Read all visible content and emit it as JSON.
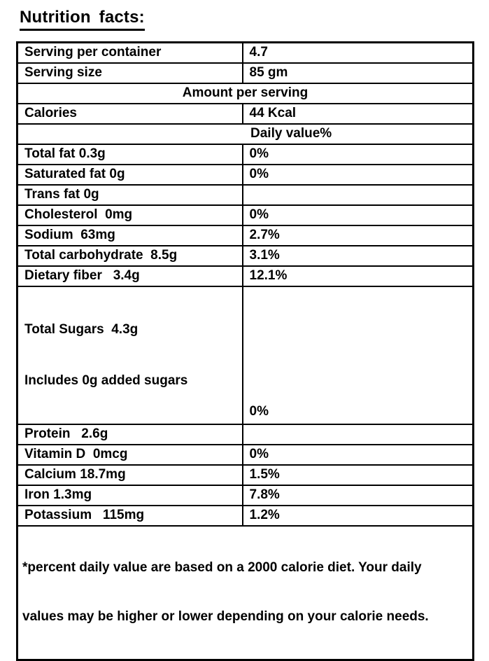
{
  "title": "Nutrition facts:",
  "table": {
    "rows": [
      {
        "label": "Serving per container",
        "value": "4.7"
      },
      {
        "label": "Serving size",
        "value": "85 gm"
      },
      {
        "text": "Amount per serving"
      },
      {
        "label": "Calories",
        "value": "44 Kcal"
      },
      {
        "text": "Daily value%"
      },
      {
        "label": "Total fat 0.3g",
        "value": "0%"
      },
      {
        "label": "Saturated fat 0g",
        "value": "0%"
      },
      {
        "label": "Trans fat 0g",
        "value": ""
      },
      {
        "label": "Cholesterol  0mg",
        "value": "0%"
      },
      {
        "label": "Sodium  63mg",
        "value": "2.7%"
      },
      {
        "label": "Total carbohydrate  8.5g",
        "value": "3.1%"
      },
      {
        "label": "Dietary fiber   3.4g",
        "value": "12.1%"
      },
      {
        "line1": "Total Sugars  4.3g",
        "line2": "Includes 0g added sugars",
        "value": "0%"
      },
      {
        "label": "Protein   2.6g",
        "value": ""
      },
      {
        "label": "Vitamin D  0mcg",
        "value": "0%"
      },
      {
        "label": "Calcium 18.7mg",
        "value": "1.5%"
      },
      {
        "label": "Iron 1.3mg",
        "value": "7.8%"
      },
      {
        "label": "Potassium   115mg",
        "value": "1.2%"
      },
      {
        "line1": "*percent daily value are based on a 2000 calorie diet. Your daily",
        "line2": "values may be higher or lower depending on your calorie needs."
      }
    ]
  }
}
